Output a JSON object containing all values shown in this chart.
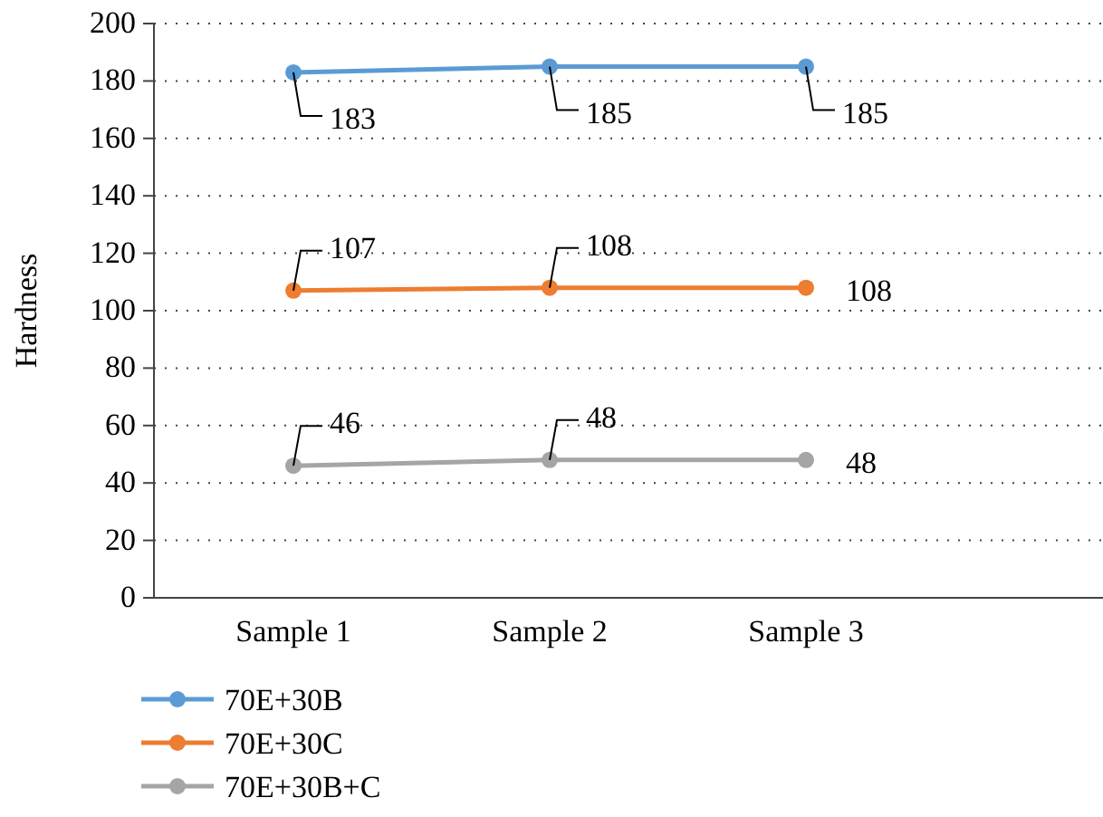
{
  "chart_data": {
    "type": "line",
    "ylabel": "Hardness",
    "categories": [
      "Sample 1",
      "Sample 2",
      "Sample 3"
    ],
    "series": [
      {
        "name": "70E+30B",
        "color": "#5b9bd5",
        "values": [
          183,
          185,
          185
        ]
      },
      {
        "name": "70E+30C",
        "color": "#ed7d31",
        "values": [
          107,
          108,
          108
        ]
      },
      {
        "name": "70E+30B+C",
        "color": "#a5a5a5",
        "values": [
          46,
          48,
          48
        ]
      }
    ],
    "ylim": [
      0,
      200
    ],
    "yticks": [
      0,
      20,
      40,
      60,
      80,
      100,
      120,
      140,
      160,
      180,
      200
    ],
    "grid": "y",
    "legend": "bottom",
    "marker": "circle",
    "line_style": "solid",
    "data_labels": true
  }
}
